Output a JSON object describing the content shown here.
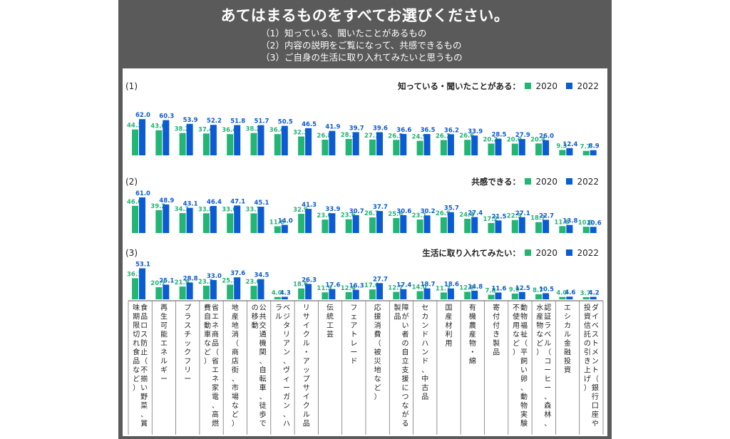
{
  "header": {
    "title": "あてはまるものをすべてお選びください。",
    "subtitles": [
      "（1）知っている、聞いたことがあるもの",
      "（2）内容の説明をご覧になって、共感できるもの",
      "（3）ご自身の生活に取り入れてみたいと思うもの"
    ]
  },
  "colors": {
    "y2020": "#22b573",
    "y2022": "#0b5bd3",
    "frame": "#5a5a5a"
  },
  "chart_data": {
    "type": "bar",
    "categories": [
      "食品ロス防止（不揃い野菜、賞味期限切れ食品など）",
      "再生可能エネルギー",
      "プラスチックフリー",
      "省エネ商品（省エネ家電、高燃費自動車など）",
      "地産地消（商店街、市場など）",
      "公共交通機関、自転車、徒歩での移動",
      "ベジタリアン、ヴィーガン、ハラル",
      "リサイクル・アップサイクル品",
      "伝統工芸",
      "フェアトレード",
      "応援消費（被災地など）",
      "障がい者の自立支援につながる製品",
      "セカンドハンド、中古品",
      "国産材利用",
      "有機農産物・綿",
      "寄付付き製品",
      "動物福祉（平飼い卵、動物実験不使用など）",
      "認証ラベル（コーヒー、森林、水産物など）",
      "エシカル金融投資",
      "ダイベストメント（銀行口座や投資信託の引き上げ）"
    ],
    "series_names": [
      "2020",
      "2022"
    ],
    "panels": [
      {
        "id": "(1)",
        "legend_label": "知っている・聞いたことがある：",
        "ylim": [
          0,
          65
        ],
        "series": [
          {
            "name": "2020",
            "values": [
              44.3,
              43.0,
              38.2,
              37.4,
              36.4,
              38.2,
              36.4,
              32.3,
              26.8,
              28.1,
              27.1,
              26.5,
              24.9,
              26.2,
              26.6,
              20.2,
              20.0,
              20.4,
              9.3,
              7.7
            ]
          },
          {
            "name": "2022",
            "values": [
              62.0,
              60.3,
              53.9,
              52.2,
              51.8,
              51.7,
              50.5,
              46.5,
              41.9,
              39.7,
              39.6,
              36.6,
              36.5,
              36.2,
              33.9,
              28.5,
              27.9,
              26.0,
              12.4,
              8.9
            ]
          }
        ]
      },
      {
        "id": "(2)",
        "legend_label": "共感できる：",
        "ylim": [
          0,
          65
        ],
        "series": [
          {
            "name": "2020",
            "values": [
              46.6,
              39.2,
              34.1,
              33.8,
              33.6,
              33.7,
              11.6,
              32.9,
              23.0,
              23.6,
              26.7,
              25.6,
              23.1,
              26.9,
              24.4,
              17.2,
              22.3,
              18.7,
              11.8,
              10.8
            ]
          },
          {
            "name": "2022",
            "values": [
              61.0,
              48.9,
              43.1,
              46.4,
              47.1,
              45.1,
              14.0,
              41.3,
              33.9,
              30.7,
              37.7,
              30.6,
              30.2,
              35.7,
              27.4,
              21.5,
              27.1,
              22.7,
              13.8,
              10.6
            ]
          }
        ]
      },
      {
        "id": "(3)",
        "legend_label": "生活に取り入れてみたい：",
        "ylim": [
          0,
          65
        ],
        "series": [
          {
            "name": "2020",
            "values": [
              36.1,
              20.7,
              21.9,
              23.3,
              25.1,
              23.0,
              4.0,
              18.6,
              11.9,
              12.4,
              17.0,
              12.7,
              14.0,
              11.7,
              12.9,
              7.8,
              9.9,
              8.7,
              4.0,
              3.7
            ]
          },
          {
            "name": "2022",
            "values": [
              53.1,
              25.1,
              28.8,
              33.0,
              37.6,
              34.5,
              4.3,
              26.3,
              17.6,
              16.3,
              27.7,
              17.4,
              18.7,
              18.6,
              14.8,
              11.6,
              12.5,
              10.5,
              4.6,
              4.2
            ]
          }
        ]
      }
    ]
  }
}
